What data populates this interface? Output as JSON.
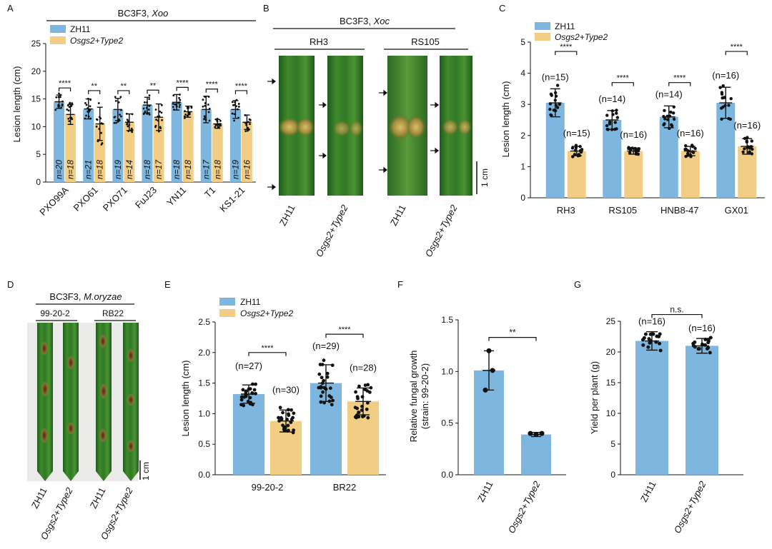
{
  "colors": {
    "wt": "#7db6df",
    "mut": "#f1ce83",
    "dot": "#111111"
  },
  "panels": {
    "A": {
      "letter": "A",
      "header_plain": "BC3F3, ",
      "header_italic": "Xoo",
      "legend": [
        "ZH11",
        "Osgs2+Type2"
      ],
      "ylabel": "Lesion length (cm)",
      "yticks": [
        "0",
        "5",
        "10",
        "15",
        "20",
        "25"
      ],
      "categories": [
        "PXO99A",
        "PXO61",
        "PXO71",
        "FuJ23",
        "YN11",
        "T1",
        "KS1-21"
      ],
      "n_wt": [
        "n=20",
        "n=21",
        "n=19",
        "n=18",
        "n=18",
        "n=17",
        "n=19"
      ],
      "n_mut": [
        "n=18",
        "n=18",
        "n=14",
        "n=17",
        "n=18",
        "n=18",
        "n=16"
      ],
      "sig": [
        "****",
        "**",
        "**",
        "**",
        "****",
        "****",
        "****"
      ]
    },
    "B": {
      "letter": "B",
      "header_plain": "BC3F3, ",
      "header_italic": "Xoc",
      "groups": [
        "RH3",
        "RS105"
      ],
      "labels": [
        "ZH11",
        "Osgs2+Type2",
        "ZH11",
        "Osgs2+Type2"
      ],
      "scale": "1 cm"
    },
    "C": {
      "letter": "C",
      "legend": [
        "ZH11",
        "Osgs2+Type2"
      ],
      "ylabel": "Lesion length (cm)",
      "yticks": [
        "0",
        "1",
        "2",
        "3",
        "4",
        "5"
      ],
      "categories": [
        "RH3",
        "RS105",
        "HNB8-47",
        "GX01"
      ],
      "n_wt": [
        "(n=15)",
        "(n=14)",
        "(n=14)",
        "(n=16)"
      ],
      "n_mut": [
        "(n=15)",
        "(n=16)",
        "(n=16)",
        "(n=16)"
      ],
      "sig": [
        "****",
        "****",
        "****",
        "****"
      ]
    },
    "D": {
      "letter": "D",
      "header_plain": "BC3F3, ",
      "header_italic": "M.oryzae",
      "groups": [
        "99-20-2",
        "RB22"
      ],
      "labels": [
        "ZH11",
        "Osgs2+Type2",
        "ZH11",
        "Osgs2+Type2"
      ],
      "scale": "1 cm"
    },
    "E": {
      "letter": "E",
      "legend": [
        "ZH11",
        "Osgs2+Type2"
      ],
      "ylabel": "Lesion length (cm)",
      "yticks": [
        "0.0",
        "0.5",
        "1.0",
        "1.5",
        "2.0",
        "2.5"
      ],
      "categories": [
        "99-20-2",
        "BR22"
      ],
      "n_wt": [
        "(n=27)",
        "(n=29)"
      ],
      "n_mut": [
        "(n=30)",
        "(n=28)"
      ],
      "sig": [
        "****",
        "****"
      ]
    },
    "F": {
      "letter": "F",
      "ylabel1": "Relative fungal growth",
      "ylabel2": "(strain: 99-20-2)",
      "yticks": [
        "0.0",
        "0.5",
        "1.0",
        "1.5"
      ],
      "categories": [
        "ZH11",
        "Osgs2+Type2"
      ],
      "sig": "**"
    },
    "G": {
      "letter": "G",
      "ylabel": "Yield per plant (g)",
      "yticks": [
        "0",
        "5",
        "10",
        "15",
        "20",
        "25"
      ],
      "categories": [
        "ZH11",
        "Osgs2+Type2"
      ],
      "n": [
        "(n=16)",
        "(n=16)"
      ],
      "sig": "n.s."
    }
  },
  "chart_data": [
    {
      "panel": "A",
      "type": "bar",
      "title": "BC3F3, Xoo",
      "ylabel": "Lesion length (cm)",
      "ylim": [
        0,
        25
      ],
      "categories": [
        "PXO99A",
        "PXO61",
        "PXO71",
        "FuJ23",
        "YN11",
        "T1",
        "KS1-21"
      ],
      "series": [
        {
          "name": "ZH11",
          "values": [
            14.5,
            13.2,
            13.1,
            13.9,
            14.4,
            13.1,
            13.1
          ],
          "err": [
            1.2,
            1.8,
            2.0,
            1.4,
            1.4,
            2.4,
            1.6
          ]
        },
        {
          "name": "Osgs2+Type2",
          "values": [
            12.2,
            10.5,
            10.8,
            11.7,
            12.7,
            10.5,
            10.8
          ],
          "err": [
            1.8,
            3.0,
            1.5,
            2.4,
            1.0,
            0.8,
            1.3
          ]
        }
      ],
      "significance": [
        "****",
        "**",
        "**",
        "**",
        "****",
        "****",
        "****"
      ]
    },
    {
      "panel": "C",
      "type": "bar",
      "ylabel": "Lesion length (cm)",
      "ylim": [
        0,
        5
      ],
      "categories": [
        "RH3",
        "RS105",
        "HNB8-47",
        "GX01"
      ],
      "series": [
        {
          "name": "ZH11",
          "values": [
            3.05,
            2.5,
            2.6,
            3.05
          ],
          "err": [
            0.45,
            0.3,
            0.35,
            0.5
          ]
        },
        {
          "name": "Osgs2+Type2",
          "values": [
            1.5,
            1.5,
            1.5,
            1.65
          ],
          "err": [
            0.15,
            0.1,
            0.15,
            0.25
          ]
        }
      ],
      "significance": [
        "****",
        "****",
        "****",
        "****"
      ]
    },
    {
      "panel": "E",
      "type": "bar",
      "ylabel": "Lesion length (cm)",
      "ylim": [
        0,
        2.5
      ],
      "categories": [
        "99-20-2",
        "BR22"
      ],
      "series": [
        {
          "name": "ZH11",
          "values": [
            1.32,
            1.5
          ],
          "err": [
            0.15,
            0.3
          ]
        },
        {
          "name": "Osgs2+Type2",
          "values": [
            0.88,
            1.2
          ],
          "err": [
            0.18,
            0.22
          ]
        }
      ],
      "significance": [
        "****",
        "****"
      ]
    },
    {
      "panel": "F",
      "type": "bar",
      "ylabel": "Relative fungal growth (strain: 99-20-2)",
      "ylim": [
        0,
        1.5
      ],
      "categories": [
        "ZH11",
        "Osgs2+Type2"
      ],
      "values": [
        1.01,
        0.39
      ],
      "err": [
        0.19,
        0.02
      ],
      "points": [
        [
          1.2,
          0.82,
          1.01
        ],
        [
          0.4,
          0.39,
          0.4
        ]
      ],
      "significance": "**"
    },
    {
      "panel": "G",
      "type": "bar",
      "ylabel": "Yield per plant (g)",
      "ylim": [
        0,
        25
      ],
      "categories": [
        "ZH11",
        "Osgs2+Type2"
      ],
      "values": [
        21.8,
        21.0
      ],
      "err": [
        1.5,
        1.2
      ],
      "significance": "n.s."
    }
  ]
}
